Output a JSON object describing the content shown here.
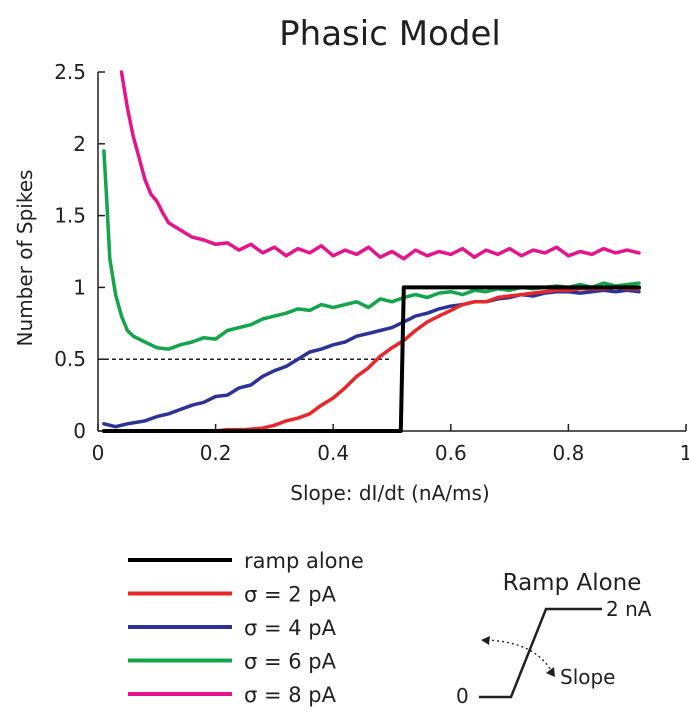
{
  "chart_data": {
    "type": "line",
    "title": "Phasic Model",
    "xlabel": "Slope: dI/dt (nA/ms)",
    "ylabel": "Number of Spikes",
    "xlim": [
      0,
      1
    ],
    "ylim": [
      0,
      2.5
    ],
    "xticks": [
      "0",
      "0.2",
      "0.4",
      "0.6",
      "0.8",
      "1"
    ],
    "yticks": [
      "0",
      "0.5",
      "1",
      "1.5",
      "2",
      "2.5"
    ],
    "grid": false,
    "legend_position": "bottom-left",
    "reference_line": {
      "y": 0.5,
      "x_range": [
        0.0,
        0.5
      ],
      "style": "dashed"
    },
    "series": [
      {
        "name": "ramp alone",
        "color": "#000000",
        "x": [
          0.01,
          0.05,
          0.1,
          0.15,
          0.2,
          0.25,
          0.3,
          0.35,
          0.4,
          0.45,
          0.5,
          0.515,
          0.52,
          0.55,
          0.6,
          0.65,
          0.7,
          0.75,
          0.8,
          0.85,
          0.9,
          0.92
        ],
        "y": [
          0,
          0,
          0,
          0,
          0,
          0,
          0,
          0,
          0,
          0,
          0,
          0,
          1,
          1,
          1,
          1,
          1,
          1,
          1,
          1,
          1,
          1
        ]
      },
      {
        "name": "σ = 2 pA",
        "color": "#e8272a",
        "x": [
          0.01,
          0.05,
          0.1,
          0.15,
          0.2,
          0.22,
          0.25,
          0.28,
          0.3,
          0.32,
          0.34,
          0.36,
          0.38,
          0.4,
          0.42,
          0.44,
          0.46,
          0.48,
          0.5,
          0.52,
          0.54,
          0.56,
          0.58,
          0.6,
          0.62,
          0.64,
          0.66,
          0.68,
          0.7,
          0.72,
          0.74,
          0.76,
          0.78,
          0.8,
          0.82,
          0.84,
          0.86,
          0.88,
          0.9,
          0.92
        ],
        "y": [
          0,
          0,
          0,
          0,
          0,
          0.01,
          0.01,
          0.02,
          0.04,
          0.07,
          0.09,
          0.12,
          0.18,
          0.23,
          0.3,
          0.38,
          0.44,
          0.52,
          0.58,
          0.63,
          0.7,
          0.76,
          0.8,
          0.84,
          0.88,
          0.9,
          0.9,
          0.93,
          0.94,
          0.95,
          0.96,
          0.97,
          0.98,
          0.98,
          0.99,
          0.99,
          0.99,
          1.0,
          0.99,
          0.99
        ]
      },
      {
        "name": "σ = 4 pA",
        "color": "#2b3394",
        "x": [
          0.01,
          0.03,
          0.05,
          0.08,
          0.1,
          0.12,
          0.14,
          0.16,
          0.18,
          0.2,
          0.22,
          0.24,
          0.26,
          0.28,
          0.3,
          0.32,
          0.34,
          0.36,
          0.38,
          0.4,
          0.42,
          0.44,
          0.46,
          0.48,
          0.5,
          0.52,
          0.54,
          0.56,
          0.58,
          0.6,
          0.62,
          0.64,
          0.66,
          0.68,
          0.7,
          0.72,
          0.74,
          0.76,
          0.78,
          0.8,
          0.82,
          0.84,
          0.86,
          0.88,
          0.9,
          0.92
        ],
        "y": [
          0.05,
          0.03,
          0.05,
          0.07,
          0.1,
          0.12,
          0.15,
          0.18,
          0.2,
          0.24,
          0.25,
          0.3,
          0.32,
          0.38,
          0.42,
          0.45,
          0.5,
          0.55,
          0.57,
          0.6,
          0.62,
          0.66,
          0.68,
          0.7,
          0.72,
          0.76,
          0.8,
          0.82,
          0.85,
          0.87,
          0.88,
          0.9,
          0.9,
          0.92,
          0.93,
          0.95,
          0.94,
          0.96,
          0.97,
          0.97,
          0.96,
          0.97,
          0.98,
          0.97,
          0.98,
          0.97
        ]
      },
      {
        "name": "σ = 6 pA",
        "color": "#12a54a",
        "x": [
          0.01,
          0.015,
          0.02,
          0.03,
          0.04,
          0.05,
          0.06,
          0.08,
          0.1,
          0.12,
          0.14,
          0.16,
          0.18,
          0.2,
          0.22,
          0.24,
          0.26,
          0.28,
          0.3,
          0.32,
          0.34,
          0.36,
          0.38,
          0.4,
          0.42,
          0.44,
          0.46,
          0.48,
          0.5,
          0.52,
          0.54,
          0.56,
          0.58,
          0.6,
          0.62,
          0.64,
          0.66,
          0.68,
          0.7,
          0.72,
          0.74,
          0.76,
          0.78,
          0.8,
          0.82,
          0.84,
          0.86,
          0.88,
          0.9,
          0.92
        ],
        "y": [
          1.95,
          1.6,
          1.2,
          0.95,
          0.8,
          0.7,
          0.66,
          0.62,
          0.58,
          0.57,
          0.6,
          0.62,
          0.65,
          0.64,
          0.7,
          0.72,
          0.74,
          0.78,
          0.8,
          0.82,
          0.85,
          0.84,
          0.88,
          0.86,
          0.88,
          0.9,
          0.86,
          0.92,
          0.9,
          0.93,
          0.95,
          0.93,
          0.96,
          0.97,
          0.95,
          0.98,
          0.97,
          0.99,
          0.98,
          1.0,
          0.99,
          1.0,
          1.01,
          1.0,
          1.02,
          1.0,
          1.03,
          1.01,
          1.02,
          1.03
        ]
      },
      {
        "name": "σ = 8 pA",
        "color": "#e5148c",
        "x": [
          0.04,
          0.05,
          0.06,
          0.07,
          0.08,
          0.09,
          0.1,
          0.11,
          0.12,
          0.14,
          0.16,
          0.18,
          0.2,
          0.22,
          0.24,
          0.26,
          0.28,
          0.3,
          0.32,
          0.34,
          0.36,
          0.38,
          0.4,
          0.42,
          0.44,
          0.46,
          0.48,
          0.5,
          0.52,
          0.54,
          0.56,
          0.58,
          0.6,
          0.62,
          0.64,
          0.66,
          0.68,
          0.7,
          0.72,
          0.74,
          0.76,
          0.78,
          0.8,
          0.82,
          0.84,
          0.86,
          0.88,
          0.9,
          0.92
        ],
        "y": [
          2.5,
          2.25,
          2.05,
          1.9,
          1.75,
          1.65,
          1.6,
          1.52,
          1.45,
          1.4,
          1.35,
          1.33,
          1.3,
          1.31,
          1.26,
          1.3,
          1.24,
          1.28,
          1.22,
          1.27,
          1.24,
          1.29,
          1.22,
          1.26,
          1.23,
          1.28,
          1.21,
          1.25,
          1.2,
          1.26,
          1.22,
          1.25,
          1.23,
          1.27,
          1.21,
          1.26,
          1.23,
          1.27,
          1.22,
          1.26,
          1.24,
          1.28,
          1.22,
          1.25,
          1.23,
          1.27,
          1.24,
          1.26,
          1.24
        ]
      }
    ]
  },
  "legend": {
    "items": [
      {
        "label": "ramp alone",
        "color": "#000000"
      },
      {
        "label": "σ = 2 pA",
        "color": "#e8272a"
      },
      {
        "label": "σ = 4 pA",
        "color": "#2b3394"
      },
      {
        "label": "σ = 6 pA",
        "color": "#12a54a"
      },
      {
        "label": "σ = 8 pA",
        "color": "#e5148c"
      }
    ]
  },
  "inset": {
    "title": "Ramp Alone",
    "top_label": "2 nA",
    "bottom_label": "0",
    "slope_label": "Slope"
  }
}
